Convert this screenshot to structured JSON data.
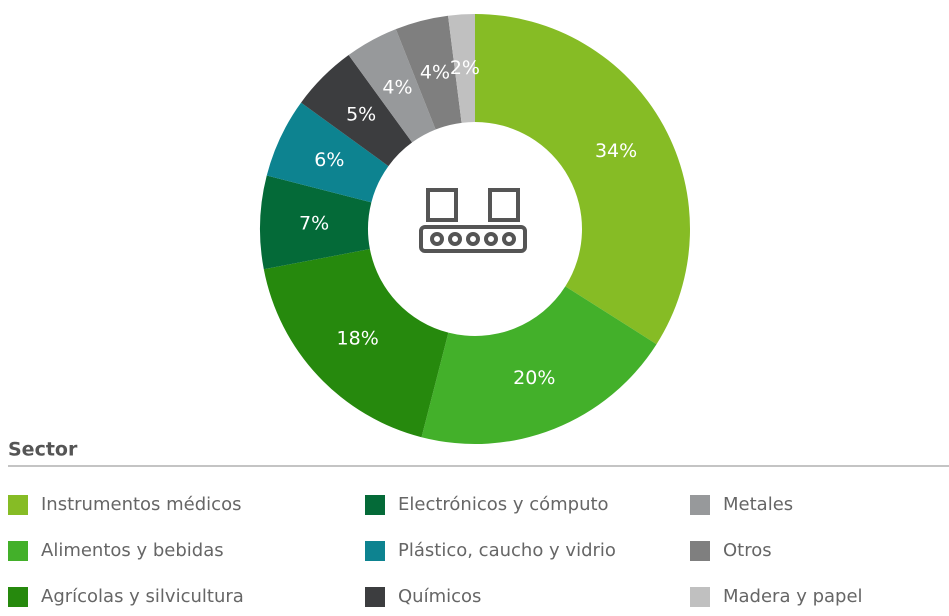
{
  "chart_data": {
    "type": "pie",
    "donut": true,
    "legend_title": "Sector",
    "categories": [
      "Instrumentos médicos",
      "Alimentos y bebidas",
      "Agrícolas y silvicultura",
      "Electrónicos y cómputo",
      "Plástico, caucho y vidrio",
      "Químicos",
      "Metales",
      "Otros",
      "Madera y papel"
    ],
    "values": [
      34,
      20,
      18,
      7,
      6,
      5,
      4,
      4,
      2
    ],
    "value_labels": [
      "34%",
      "20%",
      "18%",
      "7%",
      "6%",
      "5%",
      "4%",
      "4%",
      "2%"
    ],
    "colors": [
      "#86bc25",
      "#43b02a",
      "#26890d",
      "#046a38",
      "#0d8390",
      "#3c3d3f",
      "#97999b",
      "#7f7f7f",
      "#c0c0c0"
    ]
  }
}
